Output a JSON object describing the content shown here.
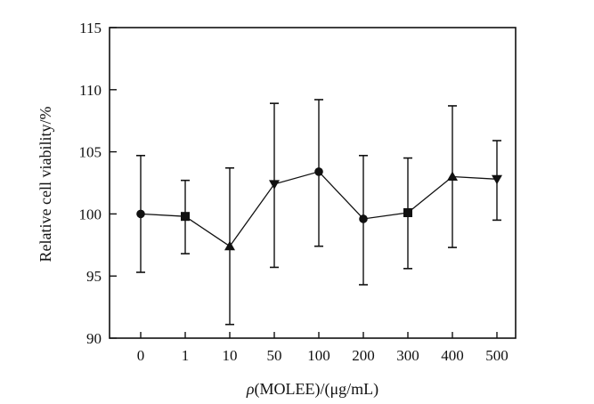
{
  "chart_data": {
    "type": "line",
    "title": "",
    "xlabel_prefix": "ρ",
    "xlabel_rest": "(MOLEE)/(μg/mL)",
    "ylabel": "Relative cell viability/%",
    "categories": [
      "0",
      "1",
      "10",
      "50",
      "100",
      "200",
      "300",
      "400",
      "500"
    ],
    "yticks": [
      "90",
      "95",
      "100",
      "105",
      "110",
      "115"
    ],
    "ylim": [
      90,
      115
    ],
    "grid": false,
    "legend": "none",
    "series": [
      {
        "values": [
          100.0,
          99.8,
          97.4,
          102.4,
          103.4,
          99.6,
          100.1,
          103.0,
          102.8
        ],
        "error_low": [
          95.3,
          96.8,
          91.1,
          95.7,
          97.4,
          94.3,
          95.6,
          97.3,
          99.5
        ],
        "error_high": [
          104.7,
          102.7,
          103.7,
          108.9,
          109.2,
          104.7,
          104.5,
          108.7,
          105.9
        ],
        "markers": [
          "circle",
          "square",
          "triangle-up",
          "triangle-down",
          "circle",
          "circle",
          "square",
          "triangle-up",
          "triangle-down"
        ],
        "color": "#111111"
      }
    ]
  }
}
